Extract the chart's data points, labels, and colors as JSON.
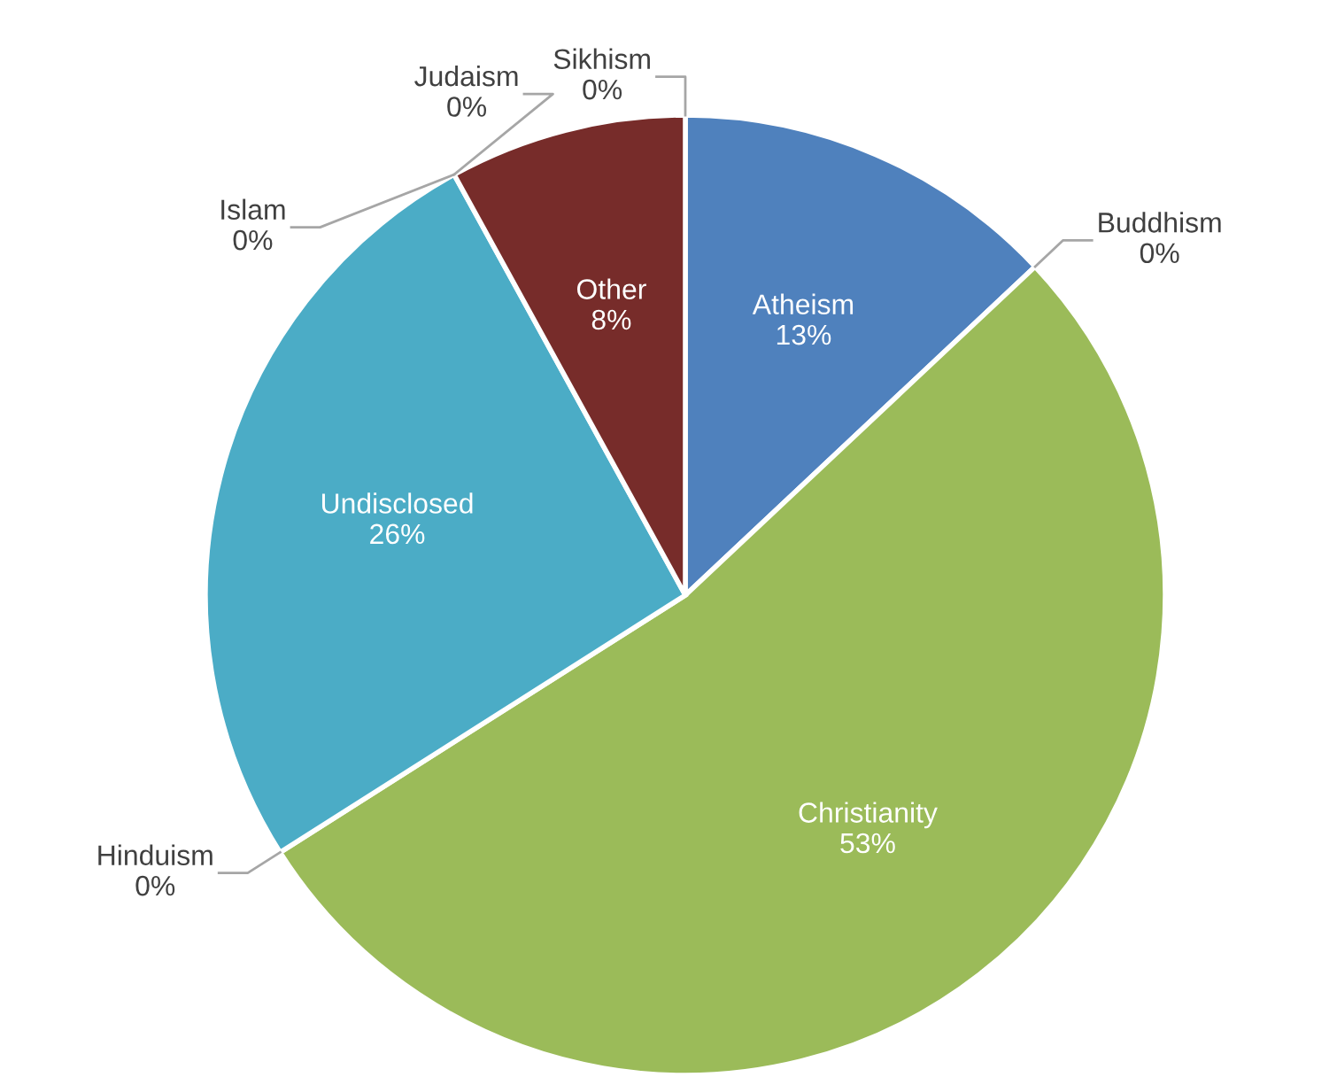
{
  "chart_data": {
    "type": "pie",
    "categories": [
      "Atheism",
      "Buddhism",
      "Christianity",
      "Hinduism",
      "Undisclosed",
      "Islam",
      "Judaism",
      "Other",
      "Sikhism"
    ],
    "values": [
      13,
      0,
      53,
      0,
      26,
      0,
      0,
      8,
      0
    ],
    "colors": [
      "#4f81bd",
      "#f79646",
      "#9bbb59",
      "#8064a2",
      "#4bacc6",
      "#2c4d75",
      "#5f7530",
      "#772c2a",
      "#276a7c"
    ],
    "value_labels": [
      "13%",
      "0%",
      "53%",
      "0%",
      "26%",
      "0%",
      "0%",
      "8%",
      "0%"
    ]
  }
}
